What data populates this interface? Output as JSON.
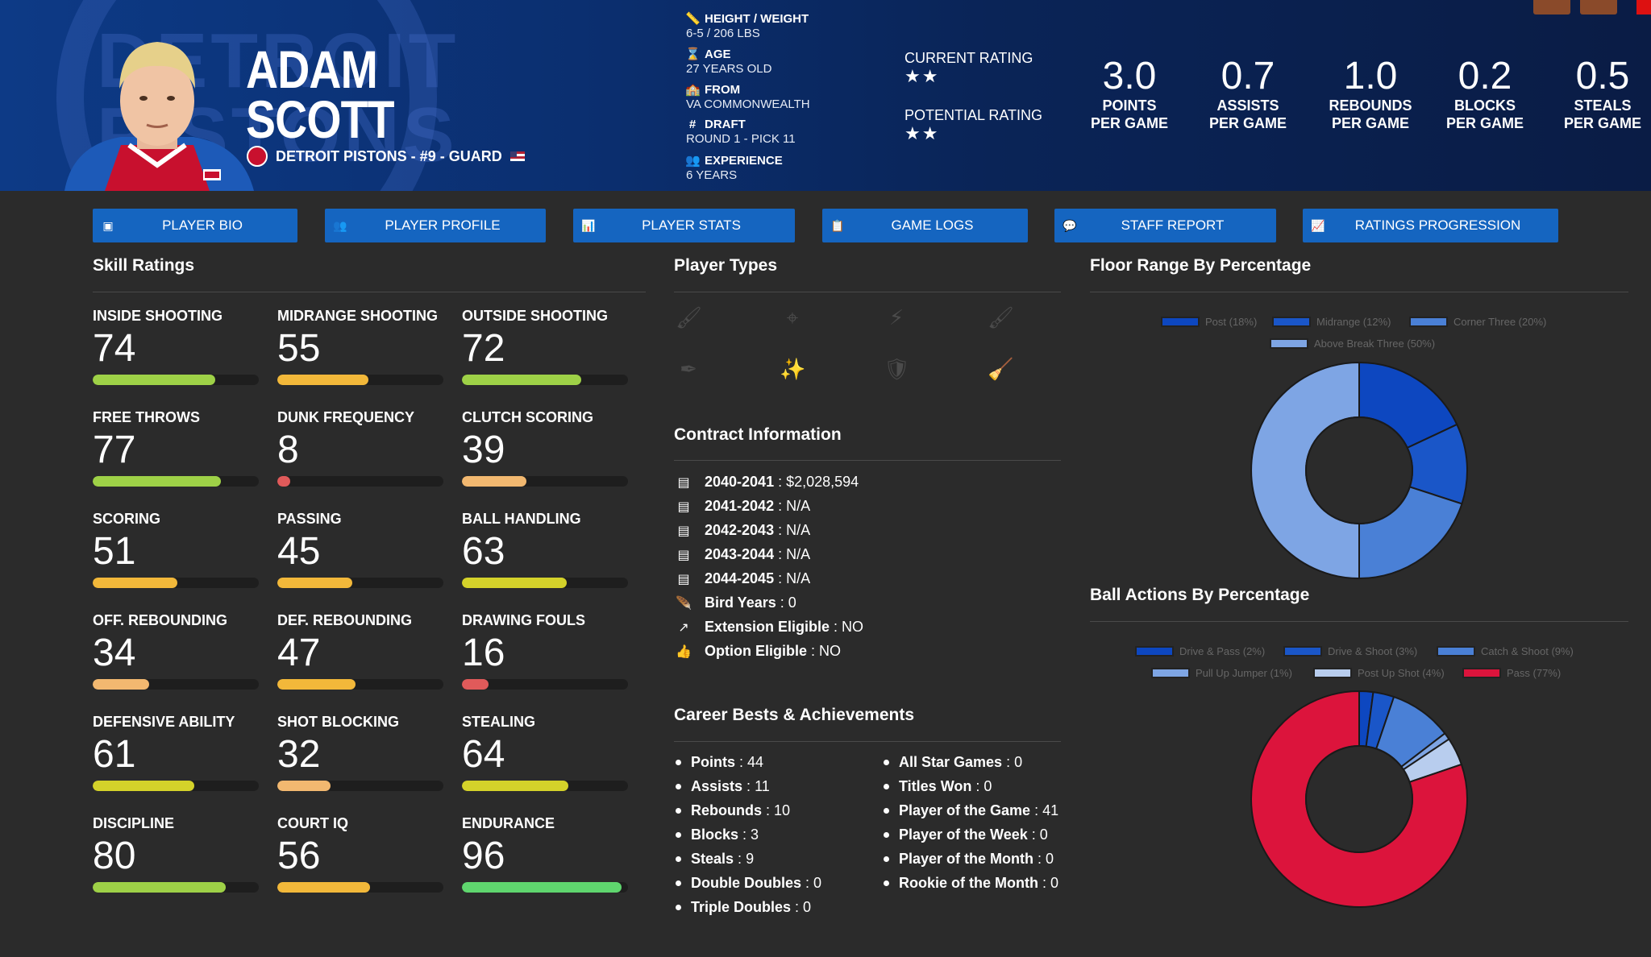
{
  "player": {
    "first_name": "ADAM",
    "last_name": "SCOTT",
    "team_line": "DETROIT PISTONS - #9 - GUARD",
    "logo_text": "DETROIT PISTONS"
  },
  "info": [
    {
      "icon": "ruler-icon",
      "glyph": "📏",
      "label": "HEIGHT / WEIGHT",
      "value": "6-5 / 206 LBS"
    },
    {
      "icon": "hourglass-icon",
      "glyph": "⌛",
      "label": "AGE",
      "value": "27 YEARS OLD"
    },
    {
      "icon": "school-icon",
      "glyph": "🏫",
      "label": "FROM",
      "value": "VA COMMONWEALTH"
    },
    {
      "icon": "hashtag-icon",
      "glyph": "#",
      "label": "DRAFT",
      "value": "ROUND 1 - PICK 11"
    },
    {
      "icon": "users-icon",
      "glyph": "👥",
      "label": "EXPERIENCE",
      "value": "6 YEARS"
    }
  ],
  "ratings": {
    "current_label": "CURRENT RATING",
    "current_stars": "★★",
    "potential_label": "POTENTIAL RATING",
    "potential_stars": "★★"
  },
  "stats": [
    {
      "value": "3.0",
      "line1": "POINTS",
      "line2": "PER GAME"
    },
    {
      "value": "0.7",
      "line1": "ASSISTS",
      "line2": "PER GAME"
    },
    {
      "value": "1.0",
      "line1": "REBOUNDS",
      "line2": "PER GAME"
    },
    {
      "value": "0.2",
      "line1": "BLOCKS",
      "line2": "PER GAME"
    },
    {
      "value": "0.5",
      "line1": "STEALS",
      "line2": "PER GAME"
    }
  ],
  "tabs": [
    {
      "label": "PLAYER BIO",
      "icon": "id-card-icon",
      "glyph": "▣"
    },
    {
      "label": "PLAYER PROFILE",
      "icon": "users-icon",
      "glyph": "👥"
    },
    {
      "label": "PLAYER STATS",
      "icon": "bar-chart-icon",
      "glyph": "📊"
    },
    {
      "label": "GAME LOGS",
      "icon": "clipboard-icon",
      "glyph": "📋"
    },
    {
      "label": "STAFF REPORT",
      "icon": "comment-icon",
      "glyph": "💬"
    },
    {
      "label": "RATINGS PROGRESSION",
      "icon": "line-chart-icon",
      "glyph": "📈"
    }
  ],
  "skills_title": "Skill Ratings",
  "skills": [
    {
      "name": "INSIDE SHOOTING",
      "value": 74,
      "color": "#9ed147"
    },
    {
      "name": "MIDRANGE SHOOTING",
      "value": 55,
      "color": "#f2b83a"
    },
    {
      "name": "OUTSIDE SHOOTING",
      "value": 72,
      "color": "#9ed147"
    },
    {
      "name": "FREE THROWS",
      "value": 77,
      "color": "#9ed147"
    },
    {
      "name": "DUNK FREQUENCY",
      "value": 8,
      "color": "#e05a5a"
    },
    {
      "name": "CLUTCH SCORING",
      "value": 39,
      "color": "#f2b870"
    },
    {
      "name": "SCORING",
      "value": 51,
      "color": "#f2b83a"
    },
    {
      "name": "PASSING",
      "value": 45,
      "color": "#f2b83a"
    },
    {
      "name": "BALL HANDLING",
      "value": 63,
      "color": "#d4d22a"
    },
    {
      "name": "OFF. REBOUNDING",
      "value": 34,
      "color": "#f2b870"
    },
    {
      "name": "DEF. REBOUNDING",
      "value": 47,
      "color": "#f2b83a"
    },
    {
      "name": "DRAWING FOULS",
      "value": 16,
      "color": "#e05a5a"
    },
    {
      "name": "DEFENSIVE ABILITY",
      "value": 61,
      "color": "#d4d22a"
    },
    {
      "name": "SHOT BLOCKING",
      "value": 32,
      "color": "#f2b870"
    },
    {
      "name": "STEALING",
      "value": 64,
      "color": "#d4d22a"
    },
    {
      "name": "DISCIPLINE",
      "value": 80,
      "color": "#9ed147"
    },
    {
      "name": "COURT IQ",
      "value": 56,
      "color": "#f2b83a"
    },
    {
      "name": "ENDURANCE",
      "value": 96,
      "color": "#5fd66e"
    }
  ],
  "player_types_title": "Player Types",
  "player_types": [
    {
      "icon": "paint-icon",
      "glyph": "🖌"
    },
    {
      "icon": "crosshair-icon",
      "glyph": "⌖"
    },
    {
      "icon": "bolt-icon",
      "glyph": "⚡"
    },
    {
      "icon": "roller-icon",
      "glyph": "🖌"
    },
    {
      "icon": "pen-icon",
      "glyph": "✒"
    },
    {
      "icon": "wand-icon",
      "glyph": "✨"
    },
    {
      "icon": "shield-icon",
      "glyph": "🛡"
    },
    {
      "icon": "broom-icon",
      "glyph": "🧹"
    }
  ],
  "contract_title": "Contract Information",
  "contract": [
    {
      "icon": "money-icon",
      "glyph": "▤",
      "label": "2040-2041",
      "value": "$2,028,594"
    },
    {
      "icon": "money-icon",
      "glyph": "▤",
      "label": "2041-2042",
      "value": "N/A"
    },
    {
      "icon": "money-icon",
      "glyph": "▤",
      "label": "2042-2043",
      "value": "N/A"
    },
    {
      "icon": "money-icon",
      "glyph": "▤",
      "label": "2043-2044",
      "value": "N/A"
    },
    {
      "icon": "money-icon",
      "glyph": "▤",
      "label": "2044-2045",
      "value": "N/A"
    },
    {
      "icon": "feather-icon",
      "glyph": "🪶",
      "label": "Bird Years",
      "value": "0"
    },
    {
      "icon": "external-link-icon",
      "glyph": "↗",
      "label": "Extension Eligible",
      "value": "NO"
    },
    {
      "icon": "thumbs-up-icon",
      "glyph": "👍",
      "label": "Option Eligible",
      "value": "NO"
    }
  ],
  "career_title": "Career Bests & Achievements",
  "career_left": [
    {
      "label": "Points",
      "value": "44"
    },
    {
      "label": "Assists",
      "value": "11"
    },
    {
      "label": "Rebounds",
      "value": "10"
    },
    {
      "label": "Blocks",
      "value": "3"
    },
    {
      "label": "Steals",
      "value": "9"
    },
    {
      "label": "Double Doubles",
      "value": "0"
    },
    {
      "label": "Triple Doubles",
      "value": "0"
    }
  ],
  "career_right": [
    {
      "label": "All Star Games",
      "value": "0"
    },
    {
      "label": "Titles Won",
      "value": "0"
    },
    {
      "label": "Player of the Game",
      "value": "41"
    },
    {
      "label": "Player of the Week",
      "value": "0"
    },
    {
      "label": "Player of the Month",
      "value": "0"
    },
    {
      "label": "Rookie of the Month",
      "value": "0"
    }
  ],
  "chart_data": [
    {
      "type": "pie",
      "title": "Floor Range By Percentage",
      "categories": [
        "Post (18%)",
        "Midrange (12%)",
        "Corner Three (20%)",
        "Above Break Three (50%)"
      ],
      "values": [
        18,
        12,
        20,
        50
      ],
      "colors": [
        "#0d47c0",
        "#1a56c8",
        "#4a80d6",
        "#7ea5e4"
      ],
      "donut": true,
      "legend": "top"
    },
    {
      "type": "pie",
      "title": "Ball Actions By Percentage",
      "categories": [
        "Drive & Pass (2%)",
        "Drive & Shoot (3%)",
        "Catch & Shoot (9%)",
        "Pull Up Jumper (1%)",
        "Post Up Shot (4%)",
        "Pass (77%)"
      ],
      "values": [
        2,
        3,
        9,
        1,
        4,
        77
      ],
      "colors": [
        "#0d47c0",
        "#1a56c8",
        "#4a80d6",
        "#7ea5e4",
        "#b8cdee",
        "#dc143c"
      ],
      "donut": true,
      "legend": "top"
    }
  ]
}
